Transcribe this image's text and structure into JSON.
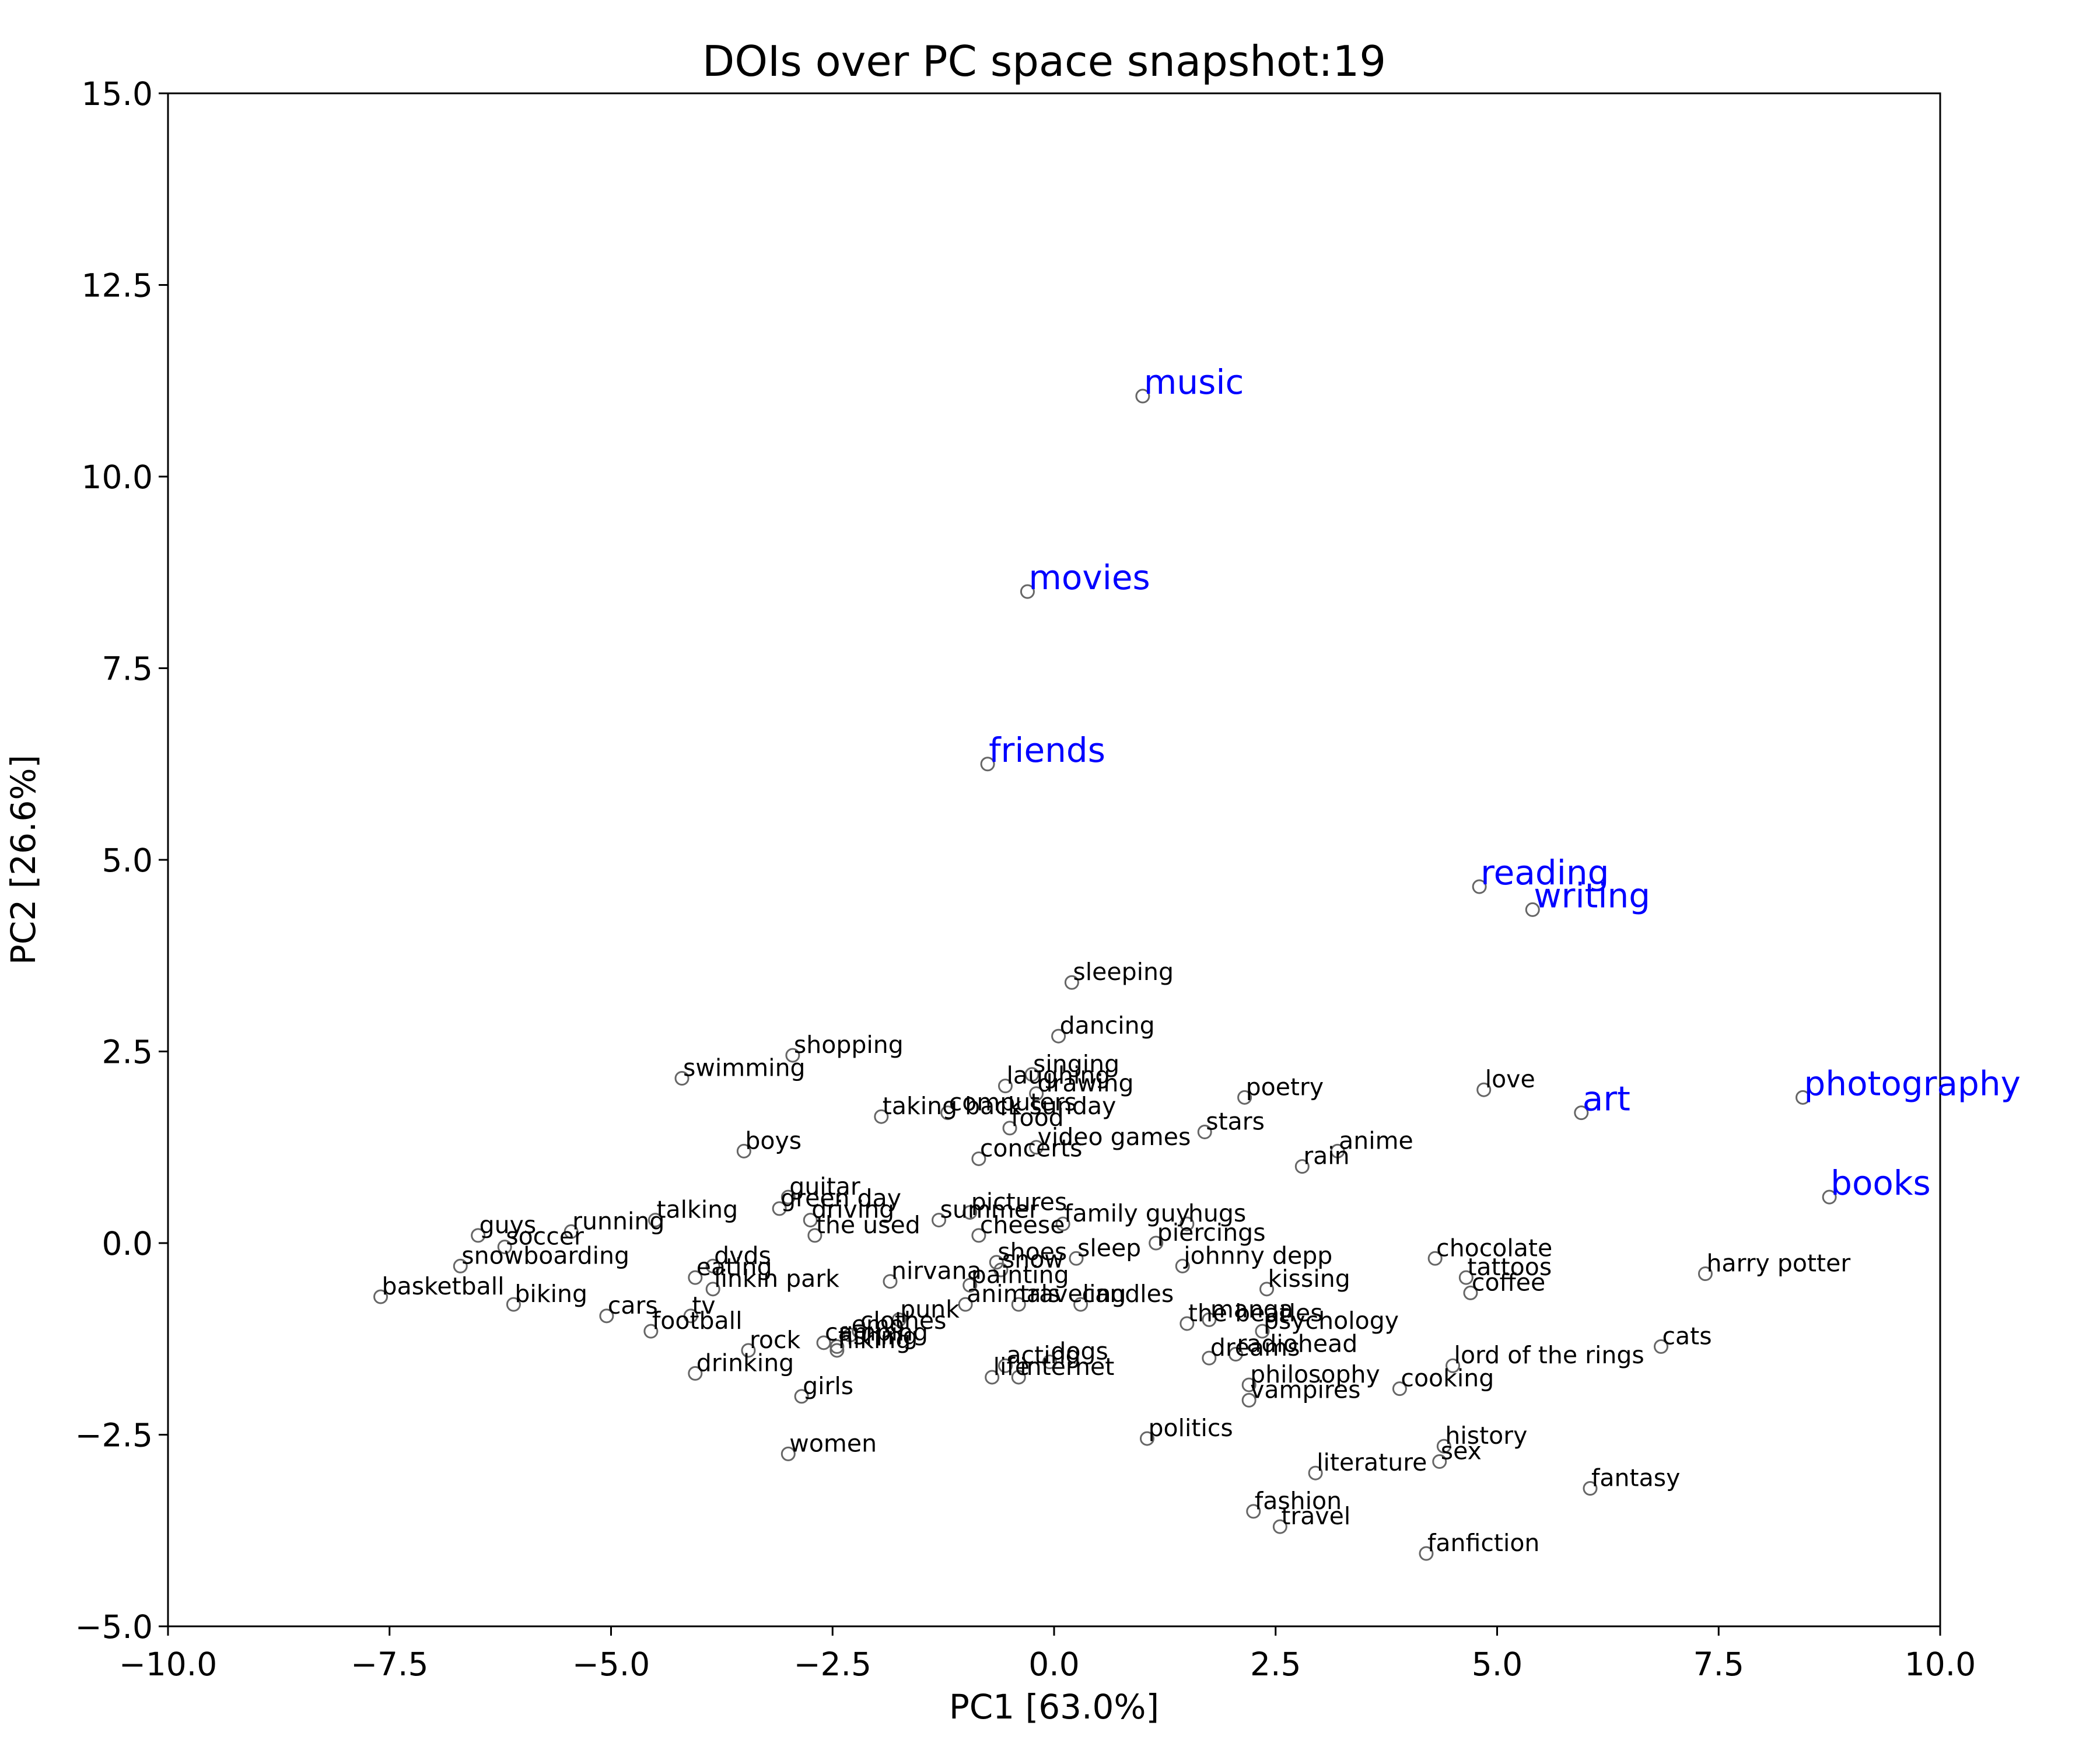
{
  "chart_data": {
    "type": "scatter",
    "title": "DOIs over PC space snapshot:19",
    "xlabel": "PC1 [63.0%]",
    "ylabel": "PC2 [26.6%]",
    "xlim": [
      -10,
      10
    ],
    "ylim": [
      -5,
      15
    ],
    "xticks": [
      -10.0,
      -7.5,
      -5.0,
      -2.5,
      0.0,
      2.5,
      5.0,
      7.5,
      10.0
    ],
    "yticks": [
      -5.0,
      -2.5,
      0.0,
      2.5,
      5.0,
      7.5,
      10.0,
      12.5,
      15.0
    ],
    "grid": false,
    "colors": {
      "highlight": "#0000ff",
      "normal": "#000000",
      "marker": "#666666"
    },
    "points": [
      {
        "label": "music",
        "x": 1.0,
        "y": 11.05,
        "highlight": true
      },
      {
        "label": "movies",
        "x": -0.3,
        "y": 8.5,
        "highlight": true
      },
      {
        "label": "friends",
        "x": -0.75,
        "y": 6.25,
        "highlight": true
      },
      {
        "label": "reading",
        "x": 4.8,
        "y": 4.65,
        "highlight": true
      },
      {
        "label": "writing",
        "x": 5.4,
        "y": 4.35,
        "highlight": true
      },
      {
        "label": "art",
        "x": 5.95,
        "y": 1.7,
        "highlight": true
      },
      {
        "label": "photography",
        "x": 8.45,
        "y": 1.9,
        "highlight": true
      },
      {
        "label": "books",
        "x": 8.75,
        "y": 0.6,
        "highlight": true
      },
      {
        "label": "sleeping",
        "x": 0.2,
        "y": 3.4
      },
      {
        "label": "dancing",
        "x": 0.05,
        "y": 2.7
      },
      {
        "label": "shopping",
        "x": -2.95,
        "y": 2.45
      },
      {
        "label": "swimming",
        "x": -4.2,
        "y": 2.15
      },
      {
        "label": "singing",
        "x": -0.25,
        "y": 2.2
      },
      {
        "label": "laughing",
        "x": -0.55,
        "y": 2.05
      },
      {
        "label": "drawing",
        "x": -0.2,
        "y": 1.95
      },
      {
        "label": "poetry",
        "x": 2.15,
        "y": 1.9
      },
      {
        "label": "love",
        "x": 4.85,
        "y": 2.0
      },
      {
        "label": "computers",
        "x": -1.2,
        "y": 1.7
      },
      {
        "label": "taking back sunday",
        "x": -1.95,
        "y": 1.65
      },
      {
        "label": "food",
        "x": -0.5,
        "y": 1.5
      },
      {
        "label": "stars",
        "x": 1.7,
        "y": 1.45
      },
      {
        "label": "video games",
        "x": -0.2,
        "y": 1.25
      },
      {
        "label": "anime",
        "x": 3.2,
        "y": 1.2
      },
      {
        "label": "boys",
        "x": -3.5,
        "y": 1.2
      },
      {
        "label": "concerts",
        "x": -0.85,
        "y": 1.1
      },
      {
        "label": "rain",
        "x": 2.8,
        "y": 1.0
      },
      {
        "label": "guitar",
        "x": -3.0,
        "y": 0.6
      },
      {
        "label": "green day",
        "x": -3.1,
        "y": 0.45
      },
      {
        "label": "driving",
        "x": -2.75,
        "y": 0.3
      },
      {
        "label": "summer",
        "x": -1.3,
        "y": 0.3
      },
      {
        "label": "pictures",
        "x": -0.95,
        "y": 0.4
      },
      {
        "label": "family guy",
        "x": 0.1,
        "y": 0.25
      },
      {
        "label": "hugs",
        "x": 1.5,
        "y": 0.25
      },
      {
        "label": "talking",
        "x": -4.5,
        "y": 0.3
      },
      {
        "label": "the used",
        "x": -2.7,
        "y": 0.1
      },
      {
        "label": "cheese",
        "x": -0.85,
        "y": 0.1
      },
      {
        "label": "piercings",
        "x": 1.15,
        "y": 0.0
      },
      {
        "label": "running",
        "x": -5.45,
        "y": 0.15
      },
      {
        "label": "guys",
        "x": -6.5,
        "y": 0.1
      },
      {
        "label": "soccer",
        "x": -6.2,
        "y": -0.05
      },
      {
        "label": "snowboarding",
        "x": -6.7,
        "y": -0.3
      },
      {
        "label": "chocolate",
        "x": 4.3,
        "y": -0.2
      },
      {
        "label": "shoes",
        "x": -0.65,
        "y": -0.25
      },
      {
        "label": "sleep",
        "x": 0.25,
        "y": -0.2
      },
      {
        "label": "snow",
        "x": -0.6,
        "y": -0.35
      },
      {
        "label": "johnny depp",
        "x": 1.45,
        "y": -0.3
      },
      {
        "label": "tattoos",
        "x": 4.65,
        "y": -0.45
      },
      {
        "label": "harry potter",
        "x": 7.35,
        "y": -0.4
      },
      {
        "label": "dvds",
        "x": -3.85,
        "y": -0.3
      },
      {
        "label": "eating",
        "x": -4.05,
        "y": -0.45
      },
      {
        "label": "linkin park",
        "x": -3.85,
        "y": -0.6
      },
      {
        "label": "nirvana",
        "x": -1.85,
        "y": -0.5
      },
      {
        "label": "painting",
        "x": -0.95,
        "y": -0.55
      },
      {
        "label": "kissing",
        "x": 2.4,
        "y": -0.6
      },
      {
        "label": "coffee",
        "x": 4.7,
        "y": -0.65
      },
      {
        "label": "basketball",
        "x": -7.6,
        "y": -0.7
      },
      {
        "label": "biking",
        "x": -6.1,
        "y": -0.8
      },
      {
        "label": "animals",
        "x": -1.0,
        "y": -0.8
      },
      {
        "label": "traveling",
        "x": -0.4,
        "y": -0.8
      },
      {
        "label": "candles",
        "x": 0.3,
        "y": -0.8
      },
      {
        "label": "cars",
        "x": -5.05,
        "y": -0.95
      },
      {
        "label": "tv",
        "x": -4.1,
        "y": -0.95
      },
      {
        "label": "punk",
        "x": -1.75,
        "y": -1.0
      },
      {
        "label": "the beatles",
        "x": 1.5,
        "y": -1.05
      },
      {
        "label": "manga",
        "x": 1.75,
        "y": -1.0
      },
      {
        "label": "psychology",
        "x": 2.35,
        "y": -1.15
      },
      {
        "label": "football",
        "x": -4.55,
        "y": -1.15
      },
      {
        "label": "clothes",
        "x": -2.2,
        "y": -1.15
      },
      {
        "label": "emo",
        "x": -2.3,
        "y": -1.2
      },
      {
        "label": "camping",
        "x": -2.6,
        "y": -1.3
      },
      {
        "label": "fishing",
        "x": -2.45,
        "y": -1.35
      },
      {
        "label": "hiking",
        "x": -2.45,
        "y": -1.4
      },
      {
        "label": "cats",
        "x": 6.85,
        "y": -1.35
      },
      {
        "label": "rock",
        "x": -3.45,
        "y": -1.4
      },
      {
        "label": "radiohead",
        "x": 2.05,
        "y": -1.45
      },
      {
        "label": "dreams",
        "x": 1.75,
        "y": -1.5
      },
      {
        "label": "lord of the rings",
        "x": 4.5,
        "y": -1.6
      },
      {
        "label": "acting",
        "x": -0.55,
        "y": -1.6
      },
      {
        "label": "dogs",
        "x": -0.05,
        "y": -1.55
      },
      {
        "label": "drinking",
        "x": -4.05,
        "y": -1.7
      },
      {
        "label": "life",
        "x": -0.7,
        "y": -1.75
      },
      {
        "label": "internet",
        "x": -0.4,
        "y": -1.75
      },
      {
        "label": "philosophy",
        "x": 2.2,
        "y": -1.85
      },
      {
        "label": "cooking",
        "x": 3.9,
        "y": -1.9
      },
      {
        "label": "girls",
        "x": -2.85,
        "y": -2.0
      },
      {
        "label": "vampires",
        "x": 2.2,
        "y": -2.05
      },
      {
        "label": "politics",
        "x": 1.05,
        "y": -2.55
      },
      {
        "label": "women",
        "x": -3.0,
        "y": -2.75
      },
      {
        "label": "history",
        "x": 4.4,
        "y": -2.65
      },
      {
        "label": "sex",
        "x": 4.35,
        "y": -2.85
      },
      {
        "label": "literature",
        "x": 2.95,
        "y": -3.0
      },
      {
        "label": "fantasy",
        "x": 6.05,
        "y": -3.2
      },
      {
        "label": "fashion",
        "x": 2.25,
        "y": -3.5
      },
      {
        "label": "travel",
        "x": 2.55,
        "y": -3.7
      },
      {
        "label": "fanfiction",
        "x": 4.2,
        "y": -4.05
      }
    ]
  }
}
